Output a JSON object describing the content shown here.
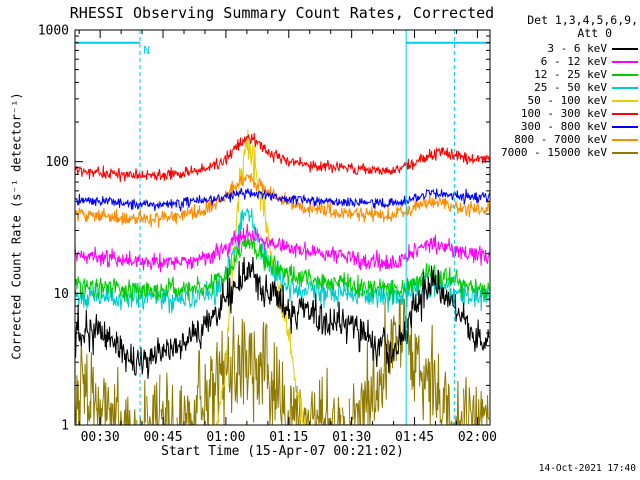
{
  "footer": {
    "timestamp": "14-Oct-2021 17:40"
  },
  "chart_data": {
    "type": "line",
    "title": "RHESSI Observing Summary Count Rates, Corrected",
    "xlabel": "Start Time (15-Apr-07 00:21:02)",
    "ylabel": "Corrected Count Rate (s⁻¹ detector⁻¹)",
    "y_scale": "log",
    "ylim": [
      1,
      1000
    ],
    "grid": false,
    "legend_position": "right",
    "x_domain_minutes": [
      24,
      123
    ],
    "x_minor_step_minutes": 5,
    "x_ticks": [
      {
        "t": 30,
        "label": "00:30"
      },
      {
        "t": 45,
        "label": "00:45"
      },
      {
        "t": 60,
        "label": "01:00"
      },
      {
        "t": 75,
        "label": "01:15"
      },
      {
        "t": 90,
        "label": "01:30"
      },
      {
        "t": 105,
        "label": "01:45"
      },
      {
        "t": 120,
        "label": "02:00"
      }
    ],
    "y_ticks": [
      {
        "v": 1,
        "label": "1"
      },
      {
        "v": 10,
        "label": "10"
      },
      {
        "v": 100,
        "label": "100"
      },
      {
        "v": 1000,
        "label": "1000"
      }
    ],
    "legend": {
      "header": "Det 1,3,4,5,6,9,",
      "subheader": "Att 0"
    },
    "night_markers": {
      "color": "#00CCEE",
      "level": 800,
      "bars": [
        {
          "t0": 24,
          "t1": 39.5
        },
        {
          "t0": 103,
          "t1": 123
        }
      ],
      "dashed_lines": [
        39.5,
        114.5
      ],
      "solid_lines": [
        103
      ],
      "label": "N",
      "label_t": 40.3
    },
    "draw_order": [
      8,
      4,
      3,
      7,
      6,
      5,
      2,
      1,
      0
    ],
    "series": [
      {
        "name": "3 - 6 keV",
        "color": "#000000",
        "sigma": 0.07,
        "points": [
          [
            24,
            5.2
          ],
          [
            30,
            5.0
          ],
          [
            34,
            4.2
          ],
          [
            38,
            3.0
          ],
          [
            44,
            3.4
          ],
          [
            50,
            4.2
          ],
          [
            56,
            6.0
          ],
          [
            60,
            9.0
          ],
          [
            63,
            13
          ],
          [
            65,
            15
          ],
          [
            67,
            13.5
          ],
          [
            70,
            10.5
          ],
          [
            74,
            8.0
          ],
          [
            80,
            6.8
          ],
          [
            86,
            6.2
          ],
          [
            92,
            5.2
          ],
          [
            97,
            4.0
          ],
          [
            100,
            3.6
          ],
          [
            103,
            5.0
          ],
          [
            106,
            9.0
          ],
          [
            109,
            11
          ],
          [
            112,
            10
          ],
          [
            115,
            8.0
          ],
          [
            118,
            5.2
          ],
          [
            121,
            4.2
          ],
          [
            123,
            4.5
          ]
        ]
      },
      {
        "name": "6 - 12 keV",
        "color": "#FF00FF",
        "sigma": 0.032,
        "points": [
          [
            24,
            20
          ],
          [
            32,
            18.5
          ],
          [
            40,
            17
          ],
          [
            48,
            17
          ],
          [
            55,
            18.5
          ],
          [
            60,
            22
          ],
          [
            63,
            27
          ],
          [
            65,
            29
          ],
          [
            68,
            26
          ],
          [
            72,
            23
          ],
          [
            78,
            21
          ],
          [
            85,
            20
          ],
          [
            92,
            18
          ],
          [
            98,
            16.5
          ],
          [
            102,
            17.5
          ],
          [
            106,
            22
          ],
          [
            109,
            24
          ],
          [
            113,
            23
          ],
          [
            117,
            21
          ],
          [
            121,
            19
          ],
          [
            123,
            19
          ]
        ]
      },
      {
        "name": "12 - 25 keV",
        "color": "#00CC00",
        "sigma": 0.04,
        "points": [
          [
            24,
            11.5
          ],
          [
            34,
            10.8
          ],
          [
            44,
            10.2
          ],
          [
            54,
            11
          ],
          [
            60,
            14
          ],
          [
            63,
            21
          ],
          [
            65,
            25
          ],
          [
            67,
            21
          ],
          [
            71,
            16
          ],
          [
            76,
            13.5
          ],
          [
            84,
            12.5
          ],
          [
            92,
            11.5
          ],
          [
            99,
            10.5
          ],
          [
            103,
            11
          ],
          [
            107,
            14
          ],
          [
            111,
            13.5
          ],
          [
            116,
            12
          ],
          [
            120,
            11
          ],
          [
            123,
            10.8
          ]
        ]
      },
      {
        "name": "25 - 50 keV",
        "color": "#00CCCC",
        "sigma": 0.05,
        "points": [
          [
            24,
            9.8
          ],
          [
            36,
            9.2
          ],
          [
            48,
            9.2
          ],
          [
            56,
            10
          ],
          [
            60,
            13
          ],
          [
            63,
            28
          ],
          [
            65,
            44
          ],
          [
            66,
            38
          ],
          [
            68,
            24
          ],
          [
            71,
            15
          ],
          [
            76,
            11
          ],
          [
            84,
            10
          ],
          [
            94,
            9.4
          ],
          [
            101,
            9.6
          ],
          [
            105,
            10.5
          ],
          [
            108,
            12
          ],
          [
            113,
            10.5
          ],
          [
            119,
            9.6
          ],
          [
            123,
            9.4
          ]
        ]
      },
      {
        "name": "50 - 100 keV",
        "color": "#E8CC00",
        "sigma": 0.07,
        "points": [
          [
            24,
            0.2
          ],
          [
            54,
            0.2
          ],
          [
            57,
            0.5
          ],
          [
            59,
            1.5
          ],
          [
            61,
            8
          ],
          [
            63,
            60
          ],
          [
            65,
            148
          ],
          [
            66,
            125
          ],
          [
            68,
            60
          ],
          [
            70,
            28
          ],
          [
            73,
            10
          ],
          [
            76,
            3
          ],
          [
            79,
            0.8
          ],
          [
            82,
            0.25
          ],
          [
            123,
            0.2
          ]
        ]
      },
      {
        "name": "100 - 300 keV",
        "color": "#FF0000",
        "sigma": 0.022,
        "points": [
          [
            24,
            86
          ],
          [
            30,
            83
          ],
          [
            38,
            79
          ],
          [
            46,
            80
          ],
          [
            54,
            86
          ],
          [
            59,
            98
          ],
          [
            62,
            125
          ],
          [
            65,
            152
          ],
          [
            67,
            142
          ],
          [
            70,
            118
          ],
          [
            74,
            102
          ],
          [
            80,
            94
          ],
          [
            86,
            91
          ],
          [
            92,
            87
          ],
          [
            98,
            85
          ],
          [
            102,
            90
          ],
          [
            105,
            100
          ],
          [
            108,
            112
          ],
          [
            111,
            118
          ],
          [
            115,
            112
          ],
          [
            118,
            103
          ],
          [
            121,
            108
          ],
          [
            123,
            104
          ]
        ]
      },
      {
        "name": "300 - 800 keV",
        "color": "#0000FF",
        "sigma": 0.02,
        "points": [
          [
            24,
            52
          ],
          [
            32,
            50
          ],
          [
            40,
            47.5
          ],
          [
            48,
            48.5
          ],
          [
            56,
            51
          ],
          [
            61,
            55
          ],
          [
            64,
            59
          ],
          [
            67,
            57
          ],
          [
            72,
            53
          ],
          [
            80,
            51
          ],
          [
            88,
            49.5
          ],
          [
            96,
            48
          ],
          [
            101,
            49
          ],
          [
            105,
            53
          ],
          [
            108,
            57
          ],
          [
            112,
            57
          ],
          [
            116,
            54
          ],
          [
            120,
            53
          ],
          [
            123,
            55
          ]
        ]
      },
      {
        "name": "800 - 7000 keV",
        "color": "#FF8C00",
        "sigma": 0.028,
        "points": [
          [
            24,
            40
          ],
          [
            32,
            38
          ],
          [
            40,
            36.5
          ],
          [
            48,
            38
          ],
          [
            55,
            43
          ],
          [
            59,
            52
          ],
          [
            62,
            66
          ],
          [
            65,
            76
          ],
          [
            67,
            70
          ],
          [
            70,
            59
          ],
          [
            74,
            50
          ],
          [
            79,
            45
          ],
          [
            86,
            42
          ],
          [
            93,
            40
          ],
          [
            99,
            39
          ],
          [
            103,
            42
          ],
          [
            106,
            47
          ],
          [
            109,
            50
          ],
          [
            113,
            47
          ],
          [
            117,
            44
          ],
          [
            120,
            43
          ],
          [
            123,
            44
          ]
        ]
      },
      {
        "name": "7000 - 15000 keV",
        "color": "#8F7A00",
        "sigma": 0.2,
        "vmax": 9,
        "points": [
          [
            24,
            2.0
          ],
          [
            27,
            1.7
          ],
          [
            30,
            1.1
          ],
          [
            33,
            1.5
          ],
          [
            36,
            0.85
          ],
          [
            40,
            0.75
          ],
          [
            44,
            1.1
          ],
          [
            48,
            0.8
          ],
          [
            52,
            1.3
          ],
          [
            56,
            1.9
          ],
          [
            60,
            2.6
          ],
          [
            63,
            3.2
          ],
          [
            65,
            3.5
          ],
          [
            68,
            2.9
          ],
          [
            71,
            2.1
          ],
          [
            75,
            1.3
          ],
          [
            79,
            0.85
          ],
          [
            83,
            1.2
          ],
          [
            87,
            0.8
          ],
          [
            91,
            1.1
          ],
          [
            95,
            1.6
          ],
          [
            98,
            2.8
          ],
          [
            101,
            5.5
          ],
          [
            103,
            5.8
          ],
          [
            105,
            3.8
          ],
          [
            107,
            2.6
          ],
          [
            110,
            1.7
          ],
          [
            113,
            1.2
          ],
          [
            116,
            0.95
          ],
          [
            119,
            1.3
          ],
          [
            123,
            1.0
          ]
        ]
      }
    ]
  }
}
